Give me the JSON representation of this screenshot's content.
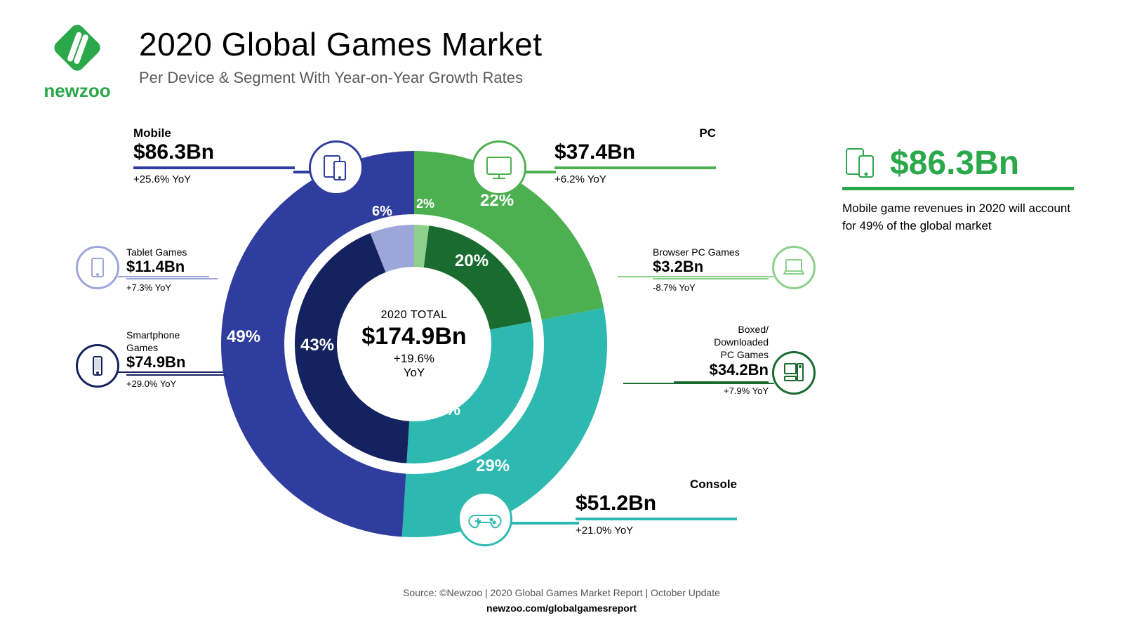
{
  "colors": {
    "mobile": "#2f3e9e",
    "pc": "#4caf50",
    "console": "#2db9b0",
    "smartphone": "#14225f",
    "tablet": "#9da6d9",
    "browser": "#8cd08c",
    "boxed": "#1a6b2f",
    "accent_green": "#2aa84a",
    "text_black": "#000000",
    "text_grey": "#5c5c5c",
    "background": "#ffffff"
  },
  "header": {
    "title": "2020 Global Games Market",
    "subtitle": "Per Device & Segment With Year-on-Year Growth Rates",
    "logo_text": "newzoo"
  },
  "center": {
    "label": "2020 TOTAL",
    "value": "$174.9Bn",
    "yoy": "+19.6%",
    "yoy_suffix": "YoY"
  },
  "outer_ring": {
    "type": "donut",
    "slices": [
      {
        "id": "pc",
        "label": "22%",
        "pct": 22,
        "color": "#4caf50"
      },
      {
        "id": "console",
        "label": "29%",
        "pct": 29,
        "color": "#2db9b0"
      },
      {
        "id": "mobile",
        "label": "49%",
        "pct": 49,
        "color": "#2f3e9e"
      }
    ],
    "stroke_width": 90
  },
  "inner_ring": {
    "type": "donut",
    "slices": [
      {
        "id": "browser",
        "label": "2%",
        "pct": 2,
        "color": "#8cd08c"
      },
      {
        "id": "boxed",
        "label": "20%",
        "pct": 20,
        "color": "#1a6b2f"
      },
      {
        "id": "console_in",
        "label": "29%",
        "pct": 29,
        "color": "#2db9b0"
      },
      {
        "id": "smartphone",
        "label": "43%",
        "pct": 43,
        "color": "#14225f"
      },
      {
        "id": "tablet",
        "label": "6%",
        "pct": 6,
        "color": "#9da6d9"
      }
    ],
    "stroke_width": 60
  },
  "callouts": {
    "mobile": {
      "name": "Mobile",
      "value": "$86.3Bn",
      "yoy": "+25.6% YoY",
      "color": "#2f3e9e"
    },
    "pc": {
      "name": "PC",
      "value": "$37.4Bn",
      "yoy": "+6.2% YoY",
      "color": "#4caf50"
    },
    "console": {
      "name": "Console",
      "value": "$51.2Bn",
      "yoy": "+21.0% YoY",
      "color": "#2db9b0"
    },
    "tablet": {
      "name": "Tablet Games",
      "value": "$11.4Bn",
      "yoy": "+7.3% YoY",
      "color": "#9da6d9"
    },
    "smartphone": {
      "name": "Smartphone Games",
      "value": "$74.9Bn",
      "yoy": "+29.0% YoY",
      "color": "#14225f"
    },
    "browser": {
      "name": "Browser PC Games",
      "value": "$3.2Bn",
      "yoy": "-8.7% YoY",
      "color": "#8cd08c"
    },
    "boxed": {
      "name": "Boxed/ Downloaded PC Games",
      "value": "$34.2Bn",
      "yoy": "+7.9% YoY",
      "color": "#1a6b2f"
    }
  },
  "summary": {
    "value": "$86.3Bn",
    "color": "#2aa84a",
    "desc": "Mobile game revenues in 2020 will account for 49% of the global market"
  },
  "footer": {
    "line1": "Source: ©Newzoo | 2020 Global Games Market Report | October Update",
    "line2": "newzoo.com/globalgamesreport"
  }
}
